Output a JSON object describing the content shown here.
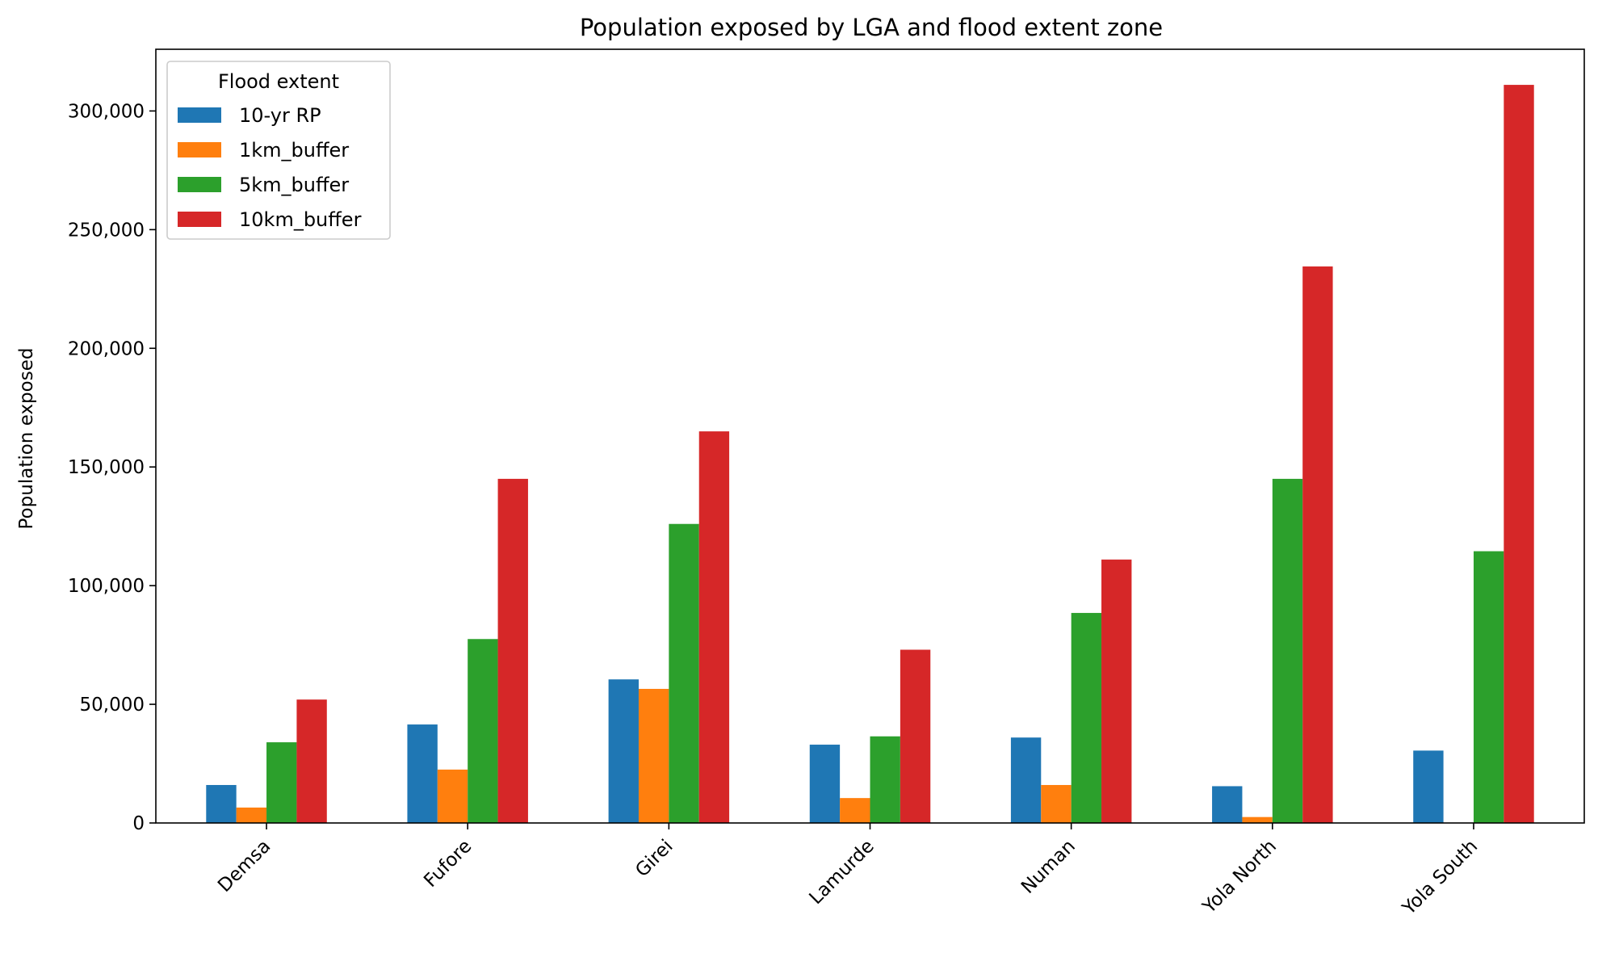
{
  "chart_data": {
    "type": "bar",
    "title": "Population exposed by LGA and flood extent zone",
    "xlabel": "",
    "ylabel": "Population exposed",
    "categories": [
      "Demsa",
      "Fufore",
      "Girei",
      "Lamurde",
      "Numan",
      "Yola North",
      "Yola South"
    ],
    "series": [
      {
        "name": "10-yr RP",
        "color": "#1f77b4",
        "values": [
          16000,
          41500,
          60500,
          33000,
          36000,
          15500,
          30500
        ]
      },
      {
        "name": "1km_buffer",
        "color": "#ff7f0e",
        "values": [
          6500,
          22500,
          56500,
          10500,
          16000,
          2500,
          0
        ]
      },
      {
        "name": "5km_buffer",
        "color": "#2ca02c",
        "values": [
          34000,
          77500,
          126000,
          36500,
          88500,
          145000,
          114500
        ]
      },
      {
        "name": "10km_buffer",
        "color": "#d62728",
        "values": [
          52000,
          145000,
          165000,
          73000,
          111000,
          234500,
          311000
        ]
      }
    ],
    "yticks": [
      0,
      50000,
      100000,
      150000,
      200000,
      250000,
      300000
    ],
    "ytick_labels": [
      "0",
      "50,000",
      "100,000",
      "150,000",
      "200,000",
      "250,000",
      "300,000"
    ],
    "ylim": [
      0,
      326000
    ],
    "legend": {
      "title": "Flood extent",
      "position": "top-left"
    },
    "grid": false
  }
}
